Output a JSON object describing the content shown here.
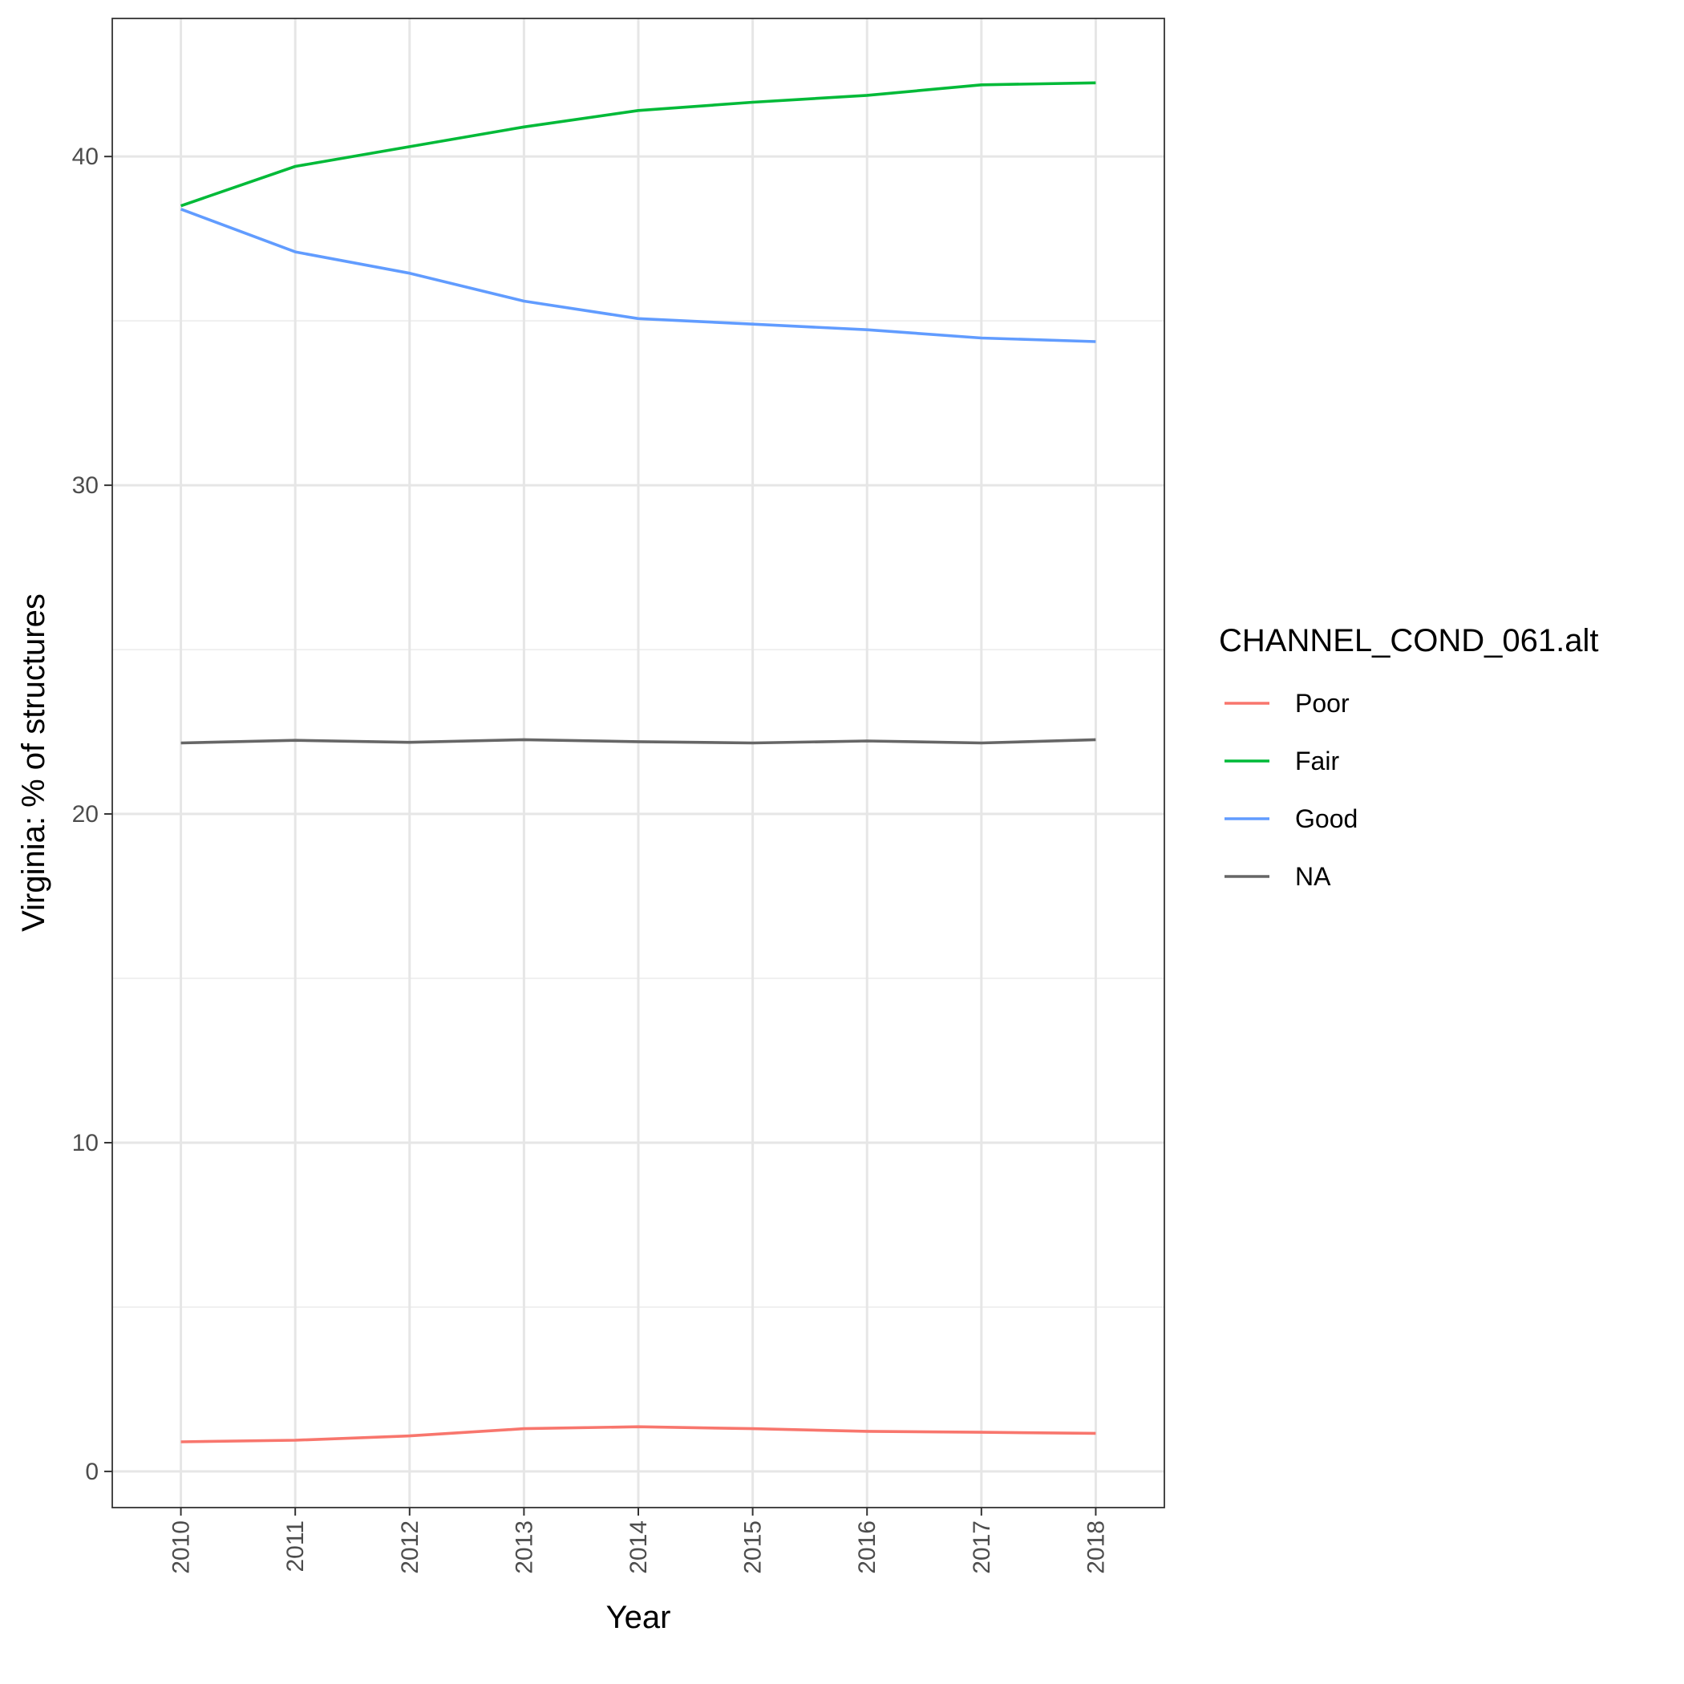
{
  "chart_data": {
    "type": "line",
    "title": "",
    "xlabel": "Year",
    "ylabel": "Virginia: % of structures",
    "x": [
      2010,
      2011,
      2012,
      2013,
      2014,
      2015,
      2016,
      2017,
      2018
    ],
    "x_tick_labels": [
      "2010",
      "2011",
      "2012",
      "2013",
      "2014",
      "2015",
      "2016",
      "2017",
      "2018"
    ],
    "y_ticks": [
      0,
      10,
      20,
      30,
      40
    ],
    "y_tick_labels": [
      "0",
      "10",
      "20",
      "30",
      "40"
    ],
    "ylim": [
      -1.1,
      44.2
    ],
    "grid": true,
    "legend": {
      "title": "CHANNEL_COND_061.alt",
      "position": "right"
    },
    "series": [
      {
        "name": "Poor",
        "color": "#F8766D",
        "values": [
          0.9,
          0.95,
          1.08,
          1.3,
          1.36,
          1.3,
          1.22,
          1.19,
          1.16
        ]
      },
      {
        "name": "Fair",
        "color": "#00BA38",
        "values": [
          38.5,
          39.7,
          40.3,
          40.9,
          41.4,
          41.65,
          41.86,
          42.18,
          42.24
        ]
      },
      {
        "name": "Good",
        "color": "#619CFF",
        "values": [
          38.4,
          37.1,
          36.45,
          35.6,
          35.07,
          34.9,
          34.73,
          34.48,
          34.37
        ]
      },
      {
        "name": "NA",
        "color": "#666666",
        "values": [
          22.16,
          22.24,
          22.18,
          22.26,
          22.2,
          22.16,
          22.22,
          22.16,
          22.26
        ]
      }
    ]
  }
}
